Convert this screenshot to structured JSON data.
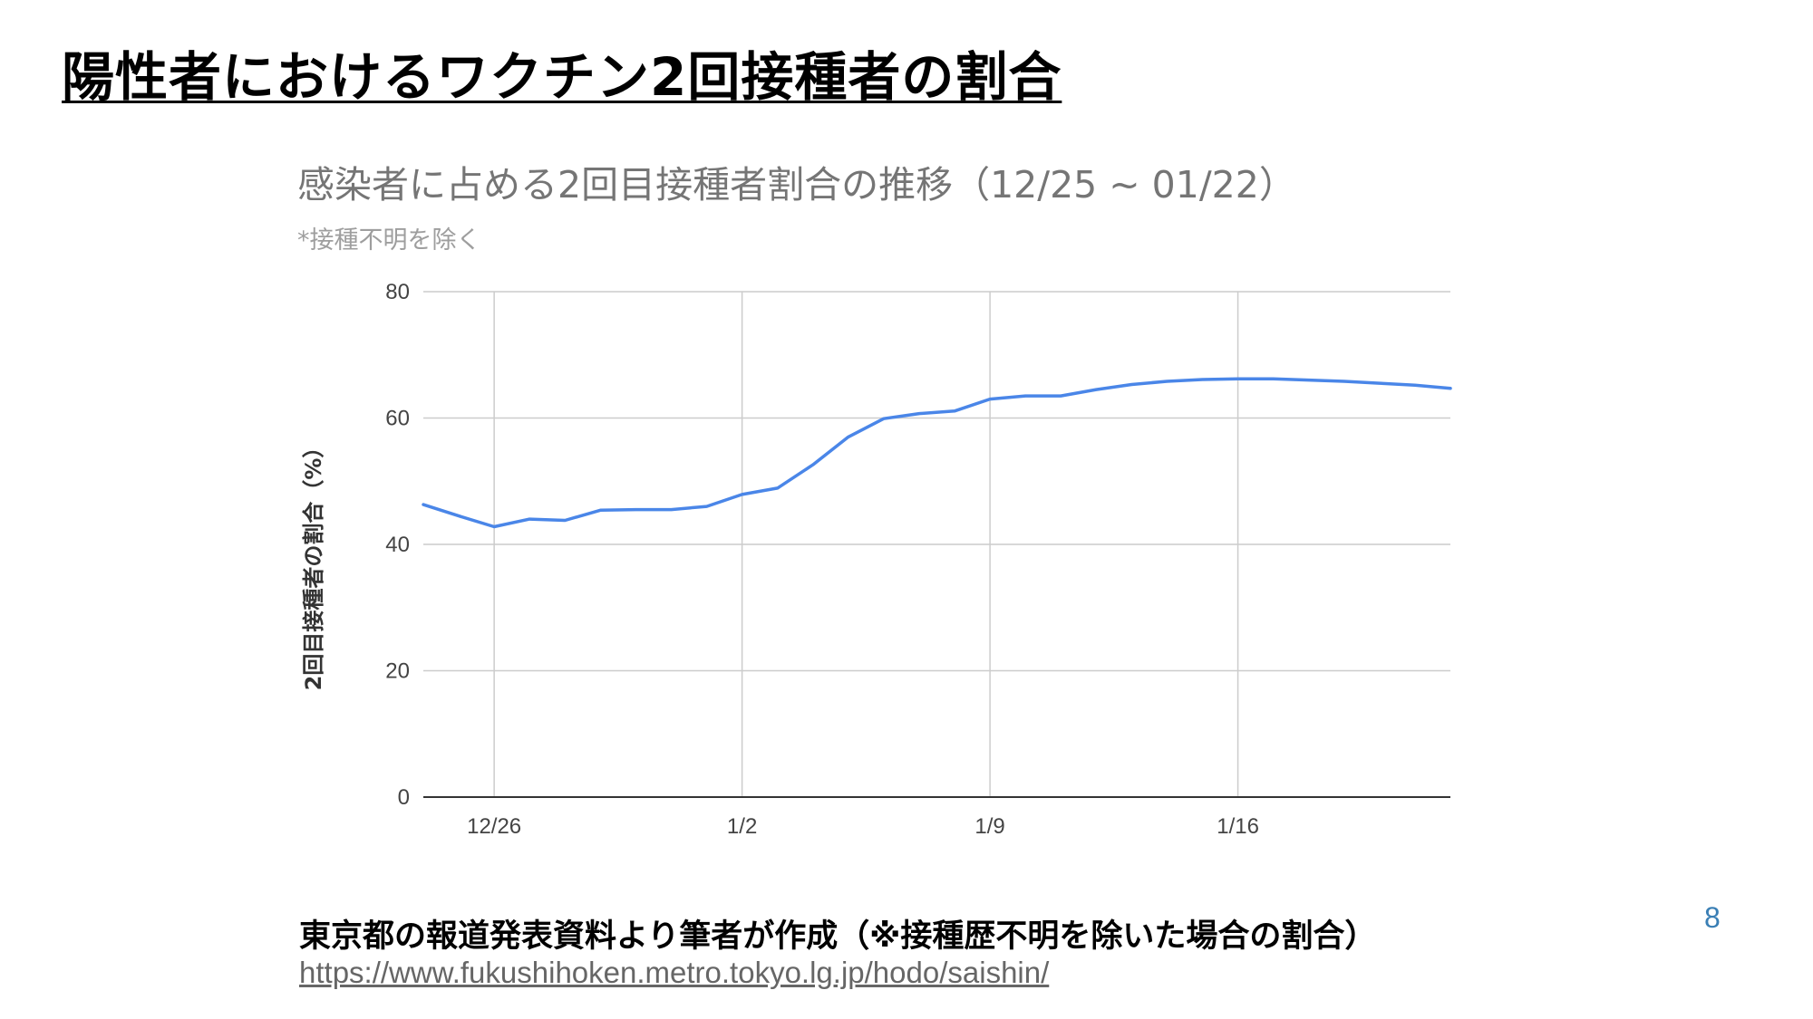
{
  "slide": {
    "title": "陽性者におけるワクチン2回接種者の割合",
    "page_number": "8",
    "source_note": "東京都の報道発表資料より筆者が作成（※接種歴不明を除いた場合の割合）",
    "source_url": "https://www.fukushihoken.metro.tokyo.lg.jp/hodo/saishin/"
  },
  "chart_data": {
    "type": "line",
    "title": "感染者に占める2回目接種者割合の推移（12/25 ~ 01/22）",
    "subtitle": "*接種不明を除く",
    "xlabel": "",
    "ylabel": "2回目接種者の割合（%）",
    "ylim": [
      0,
      80
    ],
    "yticks": [
      "0",
      "20",
      "40",
      "60",
      "80"
    ],
    "xticks": [
      {
        "label": "12/26",
        "index": 2
      },
      {
        "label": "1/2",
        "index": 9
      },
      {
        "label": "1/9",
        "index": 16
      },
      {
        "label": "1/16",
        "index": 23
      }
    ],
    "grid": true,
    "line_color": "#4a86e8",
    "x": [
      "12/24",
      "12/25",
      "12/26",
      "12/27",
      "12/28",
      "12/29",
      "12/30",
      "12/31",
      "1/1",
      "1/2",
      "1/3",
      "1/4",
      "1/5",
      "1/6",
      "1/7",
      "1/8",
      "1/9",
      "1/10",
      "1/11",
      "1/12",
      "1/13",
      "1/14",
      "1/15",
      "1/16",
      "1/17",
      "1/18",
      "1/19",
      "1/20",
      "1/21",
      "1/22"
    ],
    "series": [
      {
        "values": [
          46.3,
          44.5,
          42.8,
          44.0,
          43.8,
          45.4,
          45.5,
          45.5,
          46.0,
          47.9,
          48.9,
          52.6,
          57.0,
          59.9,
          60.7,
          61.1,
          63.0,
          63.5,
          63.5,
          64.5,
          65.3,
          65.8,
          66.1,
          66.2,
          66.2,
          66.0,
          65.8,
          65.5,
          65.2,
          64.7
        ]
      }
    ]
  }
}
